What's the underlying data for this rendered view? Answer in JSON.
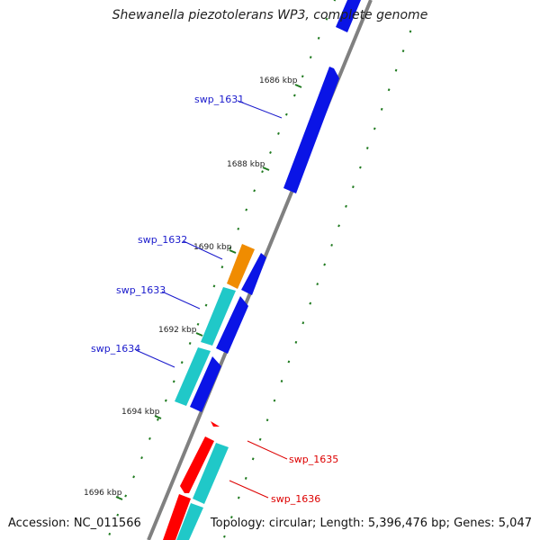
{
  "title": "Shewanella piezotolerans WP3, complete genome",
  "footer": {
    "accession": "Accession: NC_011566",
    "summary": "Topology: circular; Length: 5,396,476 bp; Genes: 5,047"
  },
  "colors": {
    "backbone": "#808080",
    "ticks": "#1f7a1f",
    "forward_cds": "#0a14e6",
    "reverse_cds": "#20c8c8",
    "orange_gene": "#f08c00",
    "red_gene": "#ff0000",
    "label_blue": "#1a1acc",
    "label_red": "#dd0000"
  },
  "scale_labels": [
    "1686 kbp",
    "1688 kbp",
    "1690 kbp",
    "1692 kbp",
    "1694 kbp",
    "1696 kbp"
  ],
  "gene_labels": [
    {
      "text": "swp_1631",
      "color": "label_blue"
    },
    {
      "text": "swp_1632",
      "color": "label_blue"
    },
    {
      "text": "swp_1633",
      "color": "label_blue"
    },
    {
      "text": "swp_1634",
      "color": "label_blue"
    },
    {
      "text": "swp_1635",
      "color": "label_red"
    },
    {
      "text": "swp_1636",
      "color": "label_red"
    }
  ]
}
